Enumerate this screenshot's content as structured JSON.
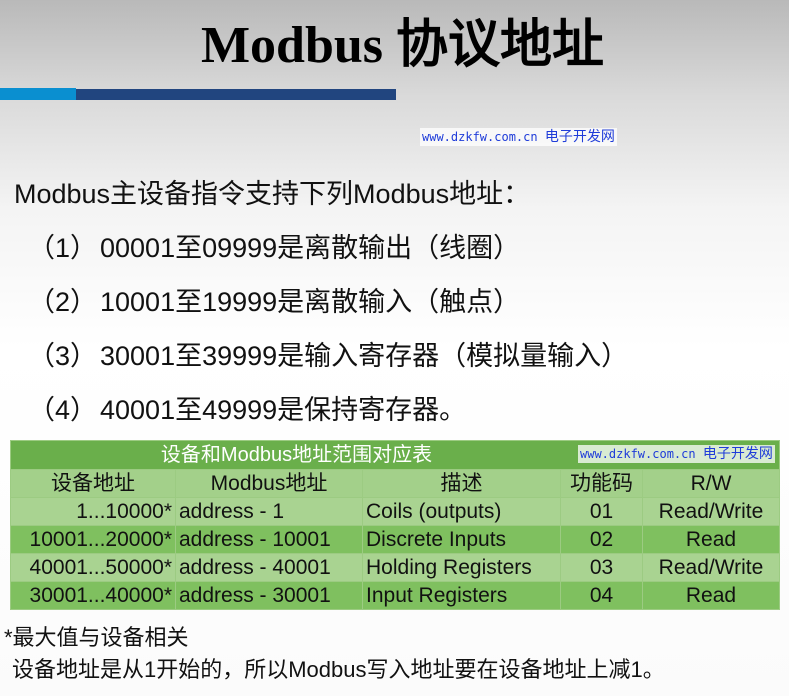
{
  "slide": {
    "title": "Modbus 协议地址",
    "accent_colors": {
      "light_blue": "#0a8fd0",
      "dark_blue": "#21457f",
      "table_header": "#6aaf4b"
    },
    "intro": "Modbus主设备指令支持下列Modbus地址：",
    "items": [
      {
        "num": "（1）",
        "text": "00001至09999是离散输出（线圈）"
      },
      {
        "num": "（2）",
        "text": "10001至19999是离散输入（触点）"
      },
      {
        "num": "（3）",
        "text": "30001至39999是输入寄存器（模拟量输入）"
      },
      {
        "num": "（4）",
        "text": "40001至49999是保持寄存器。"
      }
    ],
    "watermarks": [
      {
        "url": "www.dzkfw.com.cn",
        "name": "电子开发网"
      },
      {
        "url": "www.dzkfw.com.cn",
        "name": "电子开发网"
      }
    ],
    "table": {
      "title": "设备和Modbus地址范围对应表",
      "headers": [
        "设备地址",
        "Modbus地址",
        "描述",
        "功能码",
        "R/W"
      ],
      "rows": [
        [
          "1...10000*",
          "address - 1",
          "Coils (outputs)",
          "01",
          "Read/Write"
        ],
        [
          "10001...20000*",
          "address - 10001",
          "Discrete Inputs",
          "02",
          "Read"
        ],
        [
          "40001...50000*",
          "address - 40001",
          "Holding Registers",
          "03",
          "Read/Write"
        ],
        [
          "30001...40000*",
          "address - 30001",
          "Input Registers",
          "04",
          "Read"
        ]
      ]
    },
    "note_footnote": "*最大值与设备相关",
    "note_text": "设备地址是从1开始的，所以Modbus写入地址要在设备地址上减1。"
  }
}
